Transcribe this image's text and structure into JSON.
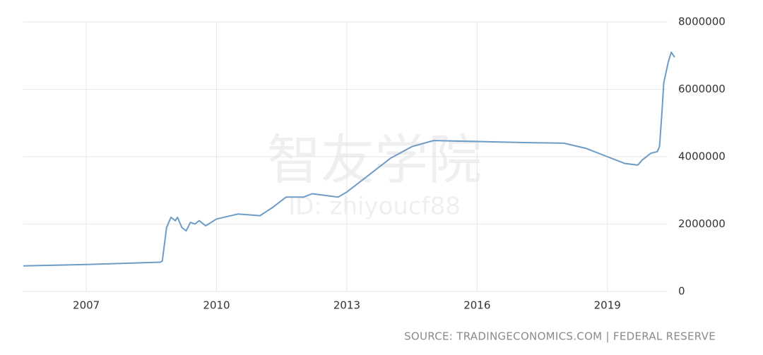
{
  "chart_data": {
    "type": "line",
    "watermark": "智友学院",
    "watermark_id": "ID: zhiyoucf88",
    "source": "SOURCE: TRADINGECONOMICS.COM | FEDERAL RESERVE",
    "x": [
      2005.55,
      2007.0,
      2008.7,
      2008.75,
      2008.85,
      2008.95,
      2009.05,
      2009.1,
      2009.2,
      2009.3,
      2009.4,
      2009.5,
      2009.6,
      2009.75,
      2010.0,
      2010.5,
      2011.0,
      2011.3,
      2011.6,
      2012.0,
      2012.2,
      2012.8,
      2013.0,
      2013.5,
      2014.0,
      2014.5,
      2015.0,
      2016.0,
      2017.0,
      2018.0,
      2018.5,
      2019.0,
      2019.4,
      2019.7,
      2019.8,
      2020.0,
      2020.15,
      2020.2,
      2020.25,
      2020.3,
      2020.4,
      2020.47,
      2020.55
    ],
    "series": [
      {
        "color": "#6d9cc6",
        "values": [
          760000,
          800000,
          870000,
          900000,
          1900000,
          2200000,
          2100000,
          2200000,
          1900000,
          1800000,
          2050000,
          2000000,
          2100000,
          1950000,
          2150000,
          2300000,
          2250000,
          2500000,
          2800000,
          2800000,
          2900000,
          2800000,
          2950000,
          3450000,
          3950000,
          4300000,
          4480000,
          4450000,
          4420000,
          4400000,
          4250000,
          4000000,
          3800000,
          3750000,
          3900000,
          4100000,
          4150000,
          4300000,
          5200000,
          6200000,
          6800000,
          7100000,
          6950000
        ]
      }
    ],
    "xlim": [
      2005.55,
      2020.55
    ],
    "xticks": [
      2007,
      2010,
      2013,
      2016,
      2019
    ],
    "ylim": [
      0,
      8000000
    ],
    "yticks": [
      0,
      2000000,
      4000000,
      6000000,
      8000000
    ],
    "grid": true
  }
}
